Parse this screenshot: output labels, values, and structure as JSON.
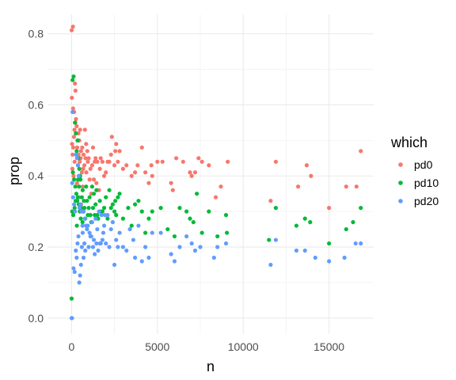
{
  "chart_data": {
    "type": "scatter",
    "xlabel": "n",
    "ylabel": "prop",
    "xlim": [
      -1400,
      17600
    ],
    "ylim": [
      -0.045,
      0.855
    ],
    "x_ticks": [
      0,
      5000,
      10000,
      15000
    ],
    "x_tick_labels": [
      "0",
      "5000",
      "10000",
      "15000"
    ],
    "y_ticks": [
      0.0,
      0.2,
      0.4,
      0.6,
      0.8
    ],
    "y_tick_labels": [
      "0.0",
      "0.2",
      "0.4",
      "0.6",
      "0.8"
    ],
    "grid": true,
    "legend": {
      "title": "which",
      "position": "right",
      "entries": [
        "pd0",
        "pd10",
        "pd20"
      ]
    },
    "series": [
      {
        "name": "pd0",
        "color": "#F8766D",
        "points": [
          [
            8,
            0.81
          ],
          [
            80,
            0.82
          ],
          [
            20,
            0.62
          ],
          [
            90,
            0.59
          ],
          [
            150,
            0.58
          ],
          [
            200,
            0.66
          ],
          [
            230,
            0.64
          ],
          [
            260,
            0.56
          ],
          [
            300,
            0.54
          ],
          [
            350,
            0.5
          ],
          [
            400,
            0.52
          ],
          [
            450,
            0.5
          ],
          [
            500,
            0.53
          ],
          [
            550,
            0.47
          ],
          [
            620,
            0.48
          ],
          [
            700,
            0.46
          ],
          [
            780,
            0.53
          ],
          [
            850,
            0.49
          ],
          [
            920,
            0.47
          ],
          [
            1000,
            0.45
          ],
          [
            1100,
            0.42
          ],
          [
            1200,
            0.43
          ],
          [
            1300,
            0.39
          ],
          [
            1400,
            0.45
          ],
          [
            1500,
            0.44
          ],
          [
            1650,
            0.42
          ],
          [
            1800,
            0.44
          ],
          [
            2000,
            0.41
          ],
          [
            2200,
            0.44
          ],
          [
            2350,
            0.51
          ],
          [
            2500,
            0.43
          ],
          [
            2600,
            0.49
          ],
          [
            2700,
            0.44
          ],
          [
            2800,
            0.47
          ],
          [
            3000,
            0.42
          ],
          [
            3200,
            0.43
          ],
          [
            3500,
            0.4
          ],
          [
            3700,
            0.41
          ],
          [
            3850,
            0.43
          ],
          [
            4100,
            0.48
          ],
          [
            4300,
            0.41
          ],
          [
            4500,
            0.38
          ],
          [
            4700,
            0.4
          ],
          [
            4650,
            0.43
          ],
          [
            5000,
            0.44
          ],
          [
            5300,
            0.44
          ],
          [
            5800,
            0.38
          ],
          [
            5900,
            0.36
          ],
          [
            6100,
            0.45
          ],
          [
            6500,
            0.44
          ],
          [
            6900,
            0.41
          ],
          [
            7000,
            0.4
          ],
          [
            7200,
            0.41
          ],
          [
            7400,
            0.45
          ],
          [
            7600,
            0.44
          ],
          [
            8000,
            0.43
          ],
          [
            8400,
            0.34
          ],
          [
            8700,
            0.37
          ],
          [
            9100,
            0.44
          ],
          [
            11600,
            0.33
          ],
          [
            11900,
            0.44
          ],
          [
            13200,
            0.37
          ],
          [
            13700,
            0.43
          ],
          [
            13950,
            0.4
          ],
          [
            15000,
            0.31
          ],
          [
            16000,
            0.37
          ],
          [
            16600,
            0.37
          ],
          [
            16850,
            0.47
          ],
          [
            50,
            0.42
          ],
          [
            120,
            0.4
          ],
          [
            180,
            0.44
          ],
          [
            320,
            0.38
          ],
          [
            380,
            0.43
          ],
          [
            430,
            0.34
          ],
          [
            500,
            0.39
          ],
          [
            560,
            0.32
          ],
          [
            650,
            0.37
          ],
          [
            750,
            0.43
          ],
          [
            860,
            0.41
          ],
          [
            950,
            0.44
          ],
          [
            1050,
            0.39
          ],
          [
            1150,
            0.35
          ],
          [
            1250,
            0.48
          ],
          [
            1350,
            0.44
          ],
          [
            1450,
            0.38
          ],
          [
            1600,
            0.36
          ],
          [
            1700,
            0.45
          ],
          [
            1900,
            0.4
          ],
          [
            2100,
            0.44
          ],
          [
            2300,
            0.46
          ],
          [
            2550,
            0.47
          ],
          [
            30,
            0.49
          ],
          [
            60,
            0.46
          ],
          [
            100,
            0.48
          ],
          [
            140,
            0.51
          ],
          [
            170,
            0.53
          ],
          [
            220,
            0.55
          ],
          [
            270,
            0.46
          ],
          [
            330,
            0.48
          ],
          [
            410,
            0.46
          ],
          [
            480,
            0.44
          ],
          [
            530,
            0.45
          ],
          [
            600,
            0.41
          ],
          [
            680,
            0.42
          ],
          [
            820,
            0.45
          ]
        ]
      },
      {
        "name": "pd10",
        "color": "#00BA38",
        "points": [
          [
            5,
            0.055
          ],
          [
            60,
            0.67
          ],
          [
            120,
            0.68
          ],
          [
            200,
            0.55
          ],
          [
            250,
            0.52
          ],
          [
            300,
            0.47
          ],
          [
            350,
            0.5
          ],
          [
            400,
            0.45
          ],
          [
            450,
            0.42
          ],
          [
            500,
            0.4
          ],
          [
            80,
            0.41
          ],
          [
            150,
            0.39
          ],
          [
            220,
            0.37
          ],
          [
            280,
            0.35
          ],
          [
            330,
            0.33
          ],
          [
            380,
            0.39
          ],
          [
            420,
            0.32
          ],
          [
            480,
            0.3
          ],
          [
            540,
            0.28
          ],
          [
            600,
            0.34
          ],
          [
            650,
            0.36
          ],
          [
            700,
            0.3
          ],
          [
            750,
            0.31
          ],
          [
            800,
            0.28
          ],
          [
            900,
            0.33
          ],
          [
            1000,
            0.31
          ],
          [
            1100,
            0.29
          ],
          [
            1200,
            0.37
          ],
          [
            1300,
            0.35
          ],
          [
            1400,
            0.32
          ],
          [
            1500,
            0.29
          ],
          [
            1650,
            0.33
          ],
          [
            1800,
            0.3
          ],
          [
            2000,
            0.34
          ],
          [
            2100,
            0.28
          ],
          [
            2200,
            0.36
          ],
          [
            2400,
            0.32
          ],
          [
            2500,
            0.3
          ],
          [
            2600,
            0.29
          ],
          [
            2700,
            0.34
          ],
          [
            2800,
            0.35
          ],
          [
            3000,
            0.28
          ],
          [
            3300,
            0.31
          ],
          [
            3500,
            0.26
          ],
          [
            3700,
            0.32
          ],
          [
            3900,
            0.33
          ],
          [
            4100,
            0.3
          ],
          [
            4300,
            0.24
          ],
          [
            4500,
            0.28
          ],
          [
            4700,
            0.3
          ],
          [
            5200,
            0.31
          ],
          [
            5600,
            0.25
          ],
          [
            6000,
            0.23
          ],
          [
            6300,
            0.31
          ],
          [
            6700,
            0.3
          ],
          [
            6900,
            0.28
          ],
          [
            7100,
            0.27
          ],
          [
            7300,
            0.35
          ],
          [
            7600,
            0.24
          ],
          [
            8000,
            0.3
          ],
          [
            8500,
            0.23
          ],
          [
            9000,
            0.29
          ],
          [
            9050,
            0.24
          ],
          [
            11500,
            0.22
          ],
          [
            11900,
            0.31
          ],
          [
            13100,
            0.26
          ],
          [
            13600,
            0.28
          ],
          [
            13900,
            0.27
          ],
          [
            15000,
            0.21
          ],
          [
            16000,
            0.25
          ],
          [
            16400,
            0.27
          ],
          [
            16850,
            0.31
          ],
          [
            40,
            0.3
          ],
          [
            100,
            0.29
          ],
          [
            180,
            0.31
          ],
          [
            240,
            0.33
          ],
          [
            310,
            0.26
          ],
          [
            360,
            0.34
          ],
          [
            440,
            0.37
          ],
          [
            520,
            0.39
          ],
          [
            580,
            0.31
          ],
          [
            640,
            0.27
          ],
          [
            720,
            0.33
          ],
          [
            850,
            0.37
          ],
          [
            950,
            0.29
          ],
          [
            1050,
            0.34
          ],
          [
            1150,
            0.27
          ],
          [
            1250,
            0.31
          ],
          [
            1350,
            0.29
          ],
          [
            1450,
            0.36
          ],
          [
            1550,
            0.28
          ],
          [
            1700,
            0.3
          ],
          [
            1900,
            0.31
          ],
          [
            2300,
            0.31
          ],
          [
            2550,
            0.33
          ]
        ]
      },
      {
        "name": "pd20",
        "color": "#619CFF",
        "points": [
          [
            5,
            0.0
          ],
          [
            30,
            0.0
          ],
          [
            60,
            0.58
          ],
          [
            120,
            0.14
          ],
          [
            180,
            0.13
          ],
          [
            250,
            0.19
          ],
          [
            300,
            0.17
          ],
          [
            350,
            0.21
          ],
          [
            400,
            0.23
          ],
          [
            450,
            0.1
          ],
          [
            500,
            0.12
          ],
          [
            550,
            0.15
          ],
          [
            600,
            0.2
          ],
          [
            650,
            0.24
          ],
          [
            700,
            0.17
          ],
          [
            750,
            0.21
          ],
          [
            800,
            0.19
          ],
          [
            900,
            0.25
          ],
          [
            1000,
            0.2
          ],
          [
            1100,
            0.23
          ],
          [
            1200,
            0.27
          ],
          [
            1300,
            0.22
          ],
          [
            1400,
            0.28
          ],
          [
            1500,
            0.25
          ],
          [
            1600,
            0.3
          ],
          [
            1700,
            0.21
          ],
          [
            1800,
            0.22
          ],
          [
            1900,
            0.26
          ],
          [
            2000,
            0.21
          ],
          [
            2100,
            0.29
          ],
          [
            2200,
            0.2
          ],
          [
            2300,
            0.25
          ],
          [
            2400,
            0.27
          ],
          [
            2500,
            0.15
          ],
          [
            2600,
            0.22
          ],
          [
            2700,
            0.2
          ],
          [
            2800,
            0.24
          ],
          [
            3000,
            0.2
          ],
          [
            3200,
            0.19
          ],
          [
            3400,
            0.25
          ],
          [
            3600,
            0.22
          ],
          [
            3700,
            0.17
          ],
          [
            3900,
            0.26
          ],
          [
            4100,
            0.16
          ],
          [
            4300,
            0.2
          ],
          [
            4500,
            0.17
          ],
          [
            4700,
            0.24
          ],
          [
            5200,
            0.24
          ],
          [
            5800,
            0.18
          ],
          [
            6000,
            0.16
          ],
          [
            6300,
            0.2
          ],
          [
            6700,
            0.23
          ],
          [
            7000,
            0.21
          ],
          [
            7200,
            0.19
          ],
          [
            7500,
            0.2
          ],
          [
            8300,
            0.17
          ],
          [
            8500,
            0.2
          ],
          [
            9000,
            0.21
          ],
          [
            11600,
            0.15
          ],
          [
            11900,
            0.22
          ],
          [
            13100,
            0.19
          ],
          [
            13600,
            0.19
          ],
          [
            14200,
            0.17
          ],
          [
            15000,
            0.16
          ],
          [
            15900,
            0.17
          ],
          [
            16550,
            0.21
          ],
          [
            16850,
            0.21
          ],
          [
            40,
            0.38
          ],
          [
            90,
            0.34
          ],
          [
            150,
            0.32
          ],
          [
            200,
            0.3
          ],
          [
            260,
            0.46
          ],
          [
            320,
            0.45
          ],
          [
            370,
            0.43
          ],
          [
            420,
            0.4
          ],
          [
            470,
            0.31
          ],
          [
            520,
            0.32
          ],
          [
            580,
            0.3
          ],
          [
            640,
            0.26
          ],
          [
            700,
            0.3
          ],
          [
            780,
            0.28
          ],
          [
            850,
            0.26
          ],
          [
            950,
            0.26
          ],
          [
            1050,
            0.24
          ],
          [
            1150,
            0.23
          ],
          [
            1250,
            0.2
          ],
          [
            1350,
            0.18
          ],
          [
            1450,
            0.21
          ],
          [
            1550,
            0.19
          ],
          [
            1650,
            0.21
          ],
          [
            1750,
            0.29
          ],
          [
            1850,
            0.24
          ],
          [
            1950,
            0.29
          ]
        ]
      }
    ]
  }
}
